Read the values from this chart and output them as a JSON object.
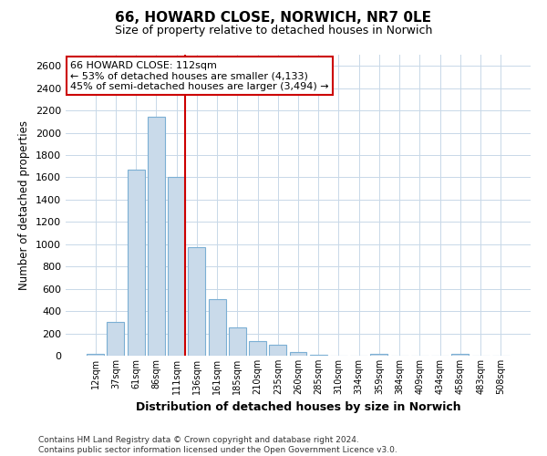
{
  "title": "66, HOWARD CLOSE, NORWICH, NR7 0LE",
  "subtitle": "Size of property relative to detached houses in Norwich",
  "xlabel": "Distribution of detached houses by size in Norwich",
  "ylabel": "Number of detached properties",
  "bar_labels": [
    "12sqm",
    "37sqm",
    "61sqm",
    "86sqm",
    "111sqm",
    "136sqm",
    "161sqm",
    "185sqm",
    "210sqm",
    "235sqm",
    "260sqm",
    "285sqm",
    "310sqm",
    "334sqm",
    "359sqm",
    "384sqm",
    "409sqm",
    "434sqm",
    "458sqm",
    "483sqm",
    "508sqm"
  ],
  "bar_values": [
    20,
    300,
    1670,
    2140,
    1600,
    970,
    510,
    255,
    130,
    100,
    30,
    10,
    0,
    0,
    15,
    0,
    0,
    0,
    20,
    0,
    0
  ],
  "bar_color": "#c9daea",
  "bar_edgecolor": "#7bafd4",
  "ylim": [
    0,
    2700
  ],
  "yticks": [
    0,
    200,
    400,
    600,
    800,
    1000,
    1200,
    1400,
    1600,
    1800,
    2000,
    2200,
    2400,
    2600
  ],
  "property_label": "66 HOWARD CLOSE: 112sqm",
  "annotation_line1": "← 53% of detached houses are smaller (4,133)",
  "annotation_line2": "45% of semi-detached houses are larger (3,494) →",
  "annotation_box_color": "#ffffff",
  "annotation_box_edgecolor": "#cc0000",
  "vline_color": "#cc0000",
  "footer_line1": "Contains HM Land Registry data © Crown copyright and database right 2024.",
  "footer_line2": "Contains public sector information licensed under the Open Government Licence v3.0.",
  "background_color": "#ffffff",
  "grid_color": "#c8d8e8"
}
